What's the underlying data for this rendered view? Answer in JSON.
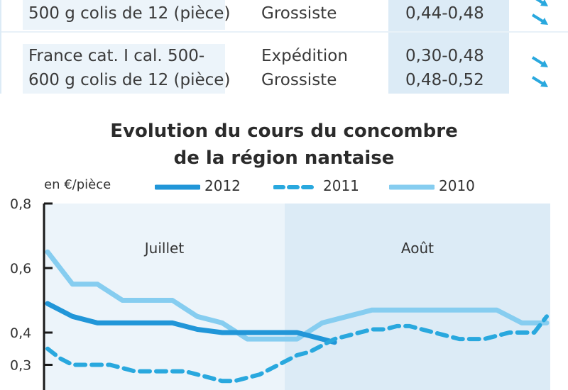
{
  "table": {
    "rows": [
      {
        "product": [
          "500 g colis de 12 (pièce)"
        ],
        "stages": [
          "Grossiste"
        ],
        "prices": [
          "0,44-0,48"
        ],
        "trend": [
          "down"
        ]
      },
      {
        "product": [
          "France cat. I cal. 500-",
          "600 g colis de 12 (pièce)"
        ],
        "stages": [
          "Expédition",
          "Grossiste"
        ],
        "prices": [
          "0,30-0,48",
          "0,48-0,52"
        ],
        "trend": [
          "down",
          "down"
        ]
      }
    ]
  },
  "colors": {
    "series_2012": "#2196d8",
    "series_2011": "#29a8de",
    "series_2010": "#86cdf0",
    "band_aout": "#dcebf6",
    "band_juillet": "#ecf4fa",
    "price_band": "#dcebf6"
  },
  "chart_data": {
    "type": "line",
    "title": [
      "Evolution du cours du concombre",
      "de la région nantaise"
    ],
    "ylabel": "en €/pièce",
    "ylim": [
      0.3,
      0.8
    ],
    "yticks": [
      0.8,
      0.6,
      0.4,
      0.3
    ],
    "ytick_labels": [
      "0,8",
      "0,6",
      "0,4",
      "0,3"
    ],
    "xlim": [
      0,
      40
    ],
    "month_regions": [
      {
        "label": "Juillet",
        "x_start": 0,
        "x_end": 19
      },
      {
        "label": "Août",
        "x_start": 19,
        "x_end": 40
      }
    ],
    "series": [
      {
        "name": "2012",
        "style": "solid-thick",
        "x": [
          0,
          2,
          4,
          6,
          8,
          10,
          12,
          14,
          16,
          18,
          20,
          22,
          23
        ],
        "y": [
          0.49,
          0.45,
          0.43,
          0.43,
          0.43,
          0.43,
          0.41,
          0.4,
          0.4,
          0.4,
          0.4,
          0.38,
          0.37
        ]
      },
      {
        "name": "2011",
        "style": "dashed",
        "x": [
          0,
          1,
          2,
          3,
          4,
          5,
          6,
          7,
          8,
          9,
          10,
          11,
          12,
          13,
          14,
          15,
          16,
          17,
          18,
          19,
          20,
          21,
          22,
          23,
          24,
          25,
          26,
          27,
          28,
          29,
          30,
          31,
          32,
          33,
          34,
          35,
          36,
          37,
          38,
          39,
          40
        ],
        "y": [
          0.35,
          0.32,
          0.3,
          0.3,
          0.3,
          0.3,
          0.29,
          0.28,
          0.28,
          0.28,
          0.28,
          0.28,
          0.27,
          0.26,
          0.25,
          0.25,
          0.26,
          0.27,
          0.29,
          0.31,
          0.33,
          0.34,
          0.36,
          0.38,
          0.39,
          0.4,
          0.41,
          0.41,
          0.42,
          0.42,
          0.41,
          0.4,
          0.39,
          0.38,
          0.38,
          0.38,
          0.39,
          0.4,
          0.4,
          0.4,
          0.45
        ]
      },
      {
        "name": "2010",
        "style": "solid-light",
        "x": [
          0,
          2,
          4,
          6,
          8,
          10,
          12,
          14,
          16,
          18,
          20,
          22,
          24,
          26,
          28,
          30,
          32,
          34,
          36,
          38,
          40
        ],
        "y": [
          0.65,
          0.55,
          0.55,
          0.5,
          0.5,
          0.5,
          0.45,
          0.43,
          0.38,
          0.38,
          0.38,
          0.43,
          0.45,
          0.47,
          0.47,
          0.47,
          0.47,
          0.47,
          0.47,
          0.43,
          0.43
        ]
      }
    ],
    "legend": {
      "placement": "top",
      "entries": [
        "2012",
        "2011",
        "2010"
      ]
    },
    "grid": false
  }
}
